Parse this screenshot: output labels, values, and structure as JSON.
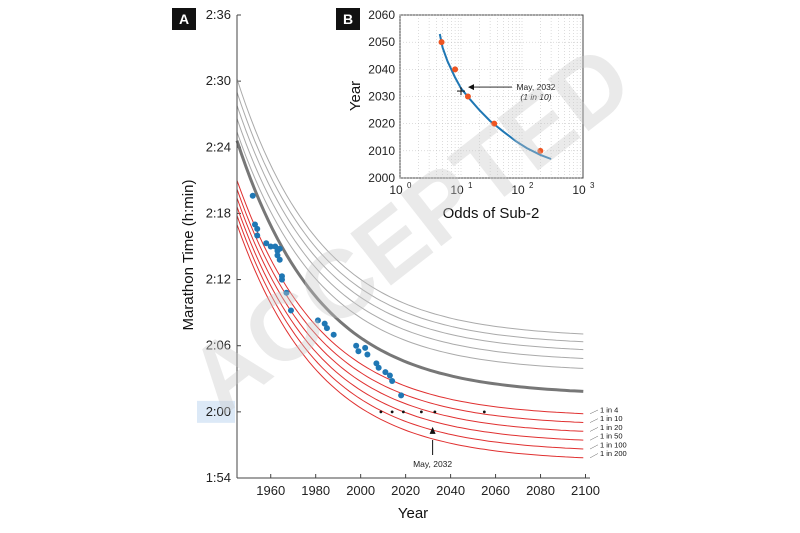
{
  "watermark": "ACCEPTED",
  "chart_data": [
    {
      "panel": "A",
      "type": "line",
      "xlabel": "Year",
      "ylabel": "Marathon Time (h:min)",
      "xlim": [
        1945,
        2102
      ],
      "ylim": [
        114,
        156
      ],
      "x_ticks": [
        1960,
        1980,
        2000,
        2020,
        2040,
        2060,
        2080,
        2100
      ],
      "y_ticks": [
        114,
        120,
        126,
        132,
        138,
        144,
        150,
        156
      ],
      "y_tick_labels": [
        "1:54",
        "2:00",
        "2:06",
        "2:12",
        "2:18",
        "2:24",
        "2:30",
        "2:36"
      ],
      "highlight_tick_label": "2:00",
      "grid": false,
      "curve_model": "exponential decay toward an asymptote",
      "decay_years": 37,
      "curve_start_year": 1945,
      "mean_curve": {
        "start": 144.6,
        "asymptote": 121.5,
        "color": "#777777"
      },
      "upper_curves": {
        "color": "#aaaaaa",
        "starts": [
          150.2,
          149.0,
          147.8,
          146.6,
          145.4
        ],
        "asymptotes": [
          126.7,
          126.0,
          125.3,
          124.5,
          123.6
        ]
      },
      "odds_curves": {
        "color": "#e03030",
        "labels": [
          "1 in 4",
          "1 in 10",
          "1 in 20",
          "1 in 50",
          "1 in 100",
          "1 in 200"
        ],
        "starts": [
          141.0,
          140.2,
          139.4,
          138.6,
          137.8,
          137.0
        ],
        "asymptotes": [
          119.5,
          118.7,
          117.9,
          117.1,
          116.3,
          115.5
        ]
      },
      "record_points": {
        "color": "#1f77b4",
        "points": [
          [
            1952,
            139.6
          ],
          [
            1953,
            137.0
          ],
          [
            1954,
            136.6
          ],
          [
            1954,
            136.0
          ],
          [
            1958,
            135.3
          ],
          [
            1960,
            135.0
          ],
          [
            1962,
            135.0
          ],
          [
            1963,
            134.6
          ],
          [
            1963,
            134.2
          ],
          [
            1964,
            134.8
          ],
          [
            1964,
            133.8
          ],
          [
            1965,
            132.3
          ],
          [
            1965,
            132.0
          ],
          [
            1967,
            130.8
          ],
          [
            1969,
            129.2
          ],
          [
            1981,
            128.3
          ],
          [
            1984,
            128.0
          ],
          [
            1985,
            127.6
          ],
          [
            1988,
            127.0
          ],
          [
            1998,
            126.0
          ],
          [
            1999,
            125.5
          ],
          [
            2002,
            125.8
          ],
          [
            2003,
            125.2
          ],
          [
            2007,
            124.4
          ],
          [
            2008,
            124.0
          ],
          [
            2011,
            123.6
          ],
          [
            2013,
            123.3
          ],
          [
            2014,
            122.8
          ],
          [
            2018,
            121.5
          ]
        ]
      },
      "crossing_points": {
        "color": "#111111",
        "points": [
          [
            2009,
            120.0
          ],
          [
            2014,
            120.0
          ],
          [
            2019,
            120.0
          ],
          [
            2027,
            120.0
          ],
          [
            2033,
            120.0
          ],
          [
            2055,
            120.0
          ]
        ]
      },
      "annotation": {
        "text": "May, 2032",
        "year": 2032,
        "value": 120
      }
    },
    {
      "panel": "B",
      "type": "line",
      "xlabel": "Odds of Sub-2",
      "ylabel": "Year",
      "x_scale": "log",
      "xlim": [
        1,
        1000
      ],
      "ylim": [
        2000,
        2060
      ],
      "x_tick_labels": [
        "10",
        "10",
        "10",
        "10"
      ],
      "x_tick_exponents": [
        "0",
        "1",
        "2",
        "3"
      ],
      "y_ticks": [
        2000,
        2010,
        2020,
        2030,
        2040,
        2050,
        2060
      ],
      "grid": true,
      "curve": {
        "color": "#1f77b4",
        "points": [
          [
            4.5,
            2053
          ],
          [
            5,
            2048
          ],
          [
            6,
            2043
          ],
          [
            8,
            2037
          ],
          [
            10,
            2033
          ],
          [
            14,
            2029
          ],
          [
            20,
            2025
          ],
          [
            30,
            2021
          ],
          [
            50,
            2017
          ],
          [
            80,
            2013.5
          ],
          [
            120,
            2011
          ],
          [
            200,
            2008.5
          ],
          [
            300,
            2007
          ]
        ]
      },
      "markers": {
        "color": "#ee5522",
        "points": [
          [
            4.8,
            2050
          ],
          [
            8,
            2040
          ],
          [
            13,
            2030
          ],
          [
            35,
            2020
          ],
          [
            200,
            2010
          ]
        ]
      },
      "highlight": {
        "x": 10,
        "y": 2032
      },
      "annotation": {
        "line1": "May, 2032",
        "line2": "(1 in 10)"
      }
    }
  ]
}
